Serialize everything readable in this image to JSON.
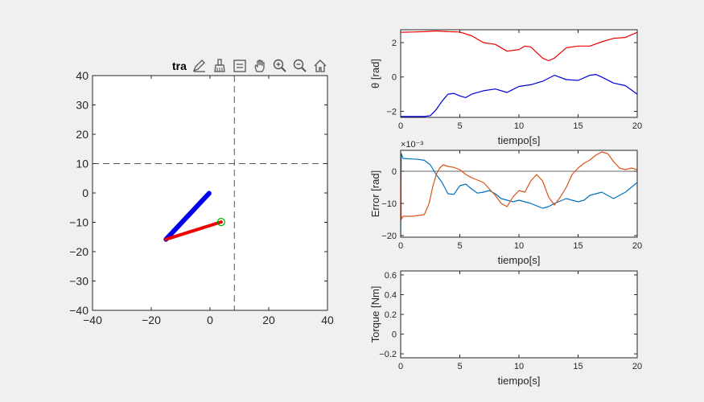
{
  "toolbar": {
    "title_fragment": "tra",
    "icons": [
      "edit-pencil-icon",
      "brush-icon",
      "data-tips-icon",
      "pan-hand-icon",
      "zoom-in-icon",
      "zoom-out-icon",
      "home-icon"
    ]
  },
  "chart_data": [
    {
      "id": "trajectory",
      "type": "line",
      "title": "tra",
      "xlim": [
        -40,
        40
      ],
      "ylim": [
        -40,
        40
      ],
      "xticks": [
        -40,
        -20,
        0,
        20,
        40
      ],
      "yticks": [
        -40,
        -30,
        -20,
        -10,
        0,
        10,
        20,
        30,
        40
      ],
      "xlabel": "",
      "ylabel": "",
      "series": [
        {
          "x": [
            -0.3,
            -15
          ],
          "y": [
            -0.1,
            -15.8
          ],
          "color": "#0000ee",
          "width": 6
        },
        {
          "x": [
            -15,
            3.8
          ],
          "y": [
            -15.8,
            -9.9
          ],
          "color": "#ee0000",
          "width": 4
        }
      ],
      "target": {
        "x": 3.8,
        "y": -9.9,
        "color": "#00b000"
      },
      "reference_lines": {
        "vertical": 8.3,
        "horizontal": 10
      }
    },
    {
      "id": "theta",
      "type": "line",
      "xlabel": "tiempo[s]",
      "ylabel": "θ  [rad]",
      "xlim": [
        0,
        20
      ],
      "ylim": [
        -2.35,
        2.75
      ],
      "xticks": [
        0,
        5,
        10,
        15,
        20
      ],
      "yticks": [
        -2,
        0,
        2
      ],
      "series": [
        {
          "color": "#ee0000",
          "x": [
            0,
            1,
            2,
            3,
            4,
            5,
            6,
            7,
            8,
            9,
            10,
            10.5,
            11,
            12,
            12.5,
            13,
            14,
            15,
            16,
            17,
            18,
            19,
            20
          ],
          "y": [
            2.6,
            2.62,
            2.64,
            2.68,
            2.64,
            2.62,
            2.4,
            2.0,
            1.9,
            1.5,
            1.6,
            1.8,
            1.75,
            1.1,
            0.95,
            1.1,
            1.7,
            1.8,
            1.8,
            2.05,
            2.25,
            2.3,
            2.6
          ]
        },
        {
          "color": "#0000dd",
          "x": [
            0,
            1,
            2,
            2.5,
            3,
            3.5,
            4,
            4.5,
            5,
            5.5,
            6,
            7,
            8,
            9,
            10,
            11,
            12,
            13,
            14,
            15,
            16,
            16.5,
            17,
            18,
            19,
            20
          ],
          "y": [
            -2.3,
            -2.3,
            -2.3,
            -2.25,
            -1.9,
            -1.4,
            -1.0,
            -0.95,
            -1.1,
            -1.2,
            -1.0,
            -0.8,
            -0.7,
            -0.9,
            -0.55,
            -0.45,
            -0.25,
            0.1,
            -0.15,
            -0.2,
            0.1,
            0.15,
            0.0,
            -0.35,
            -0.5,
            -1.0
          ]
        }
      ]
    },
    {
      "id": "error",
      "type": "line",
      "xlabel": "tiempo[s]",
      "ylabel": "Error [rad]",
      "exponent": "×10⁻³",
      "xlim": [
        0,
        20
      ],
      "ylim": [
        -20.5,
        6.5
      ],
      "xticks": [
        0,
        5,
        10,
        15,
        20
      ],
      "yticks": [
        -20,
        -10,
        0
      ],
      "zero_line": true,
      "series": [
        {
          "color": "#0072bd",
          "x": [
            0,
            0.05,
            0.2,
            0.5,
            1,
            1.5,
            2,
            2.5,
            3,
            3.5,
            4,
            4.5,
            5,
            5.5,
            6,
            6.5,
            7,
            7.5,
            8,
            8.5,
            9,
            9.5,
            10,
            11,
            12,
            12.5,
            13,
            14,
            14.5,
            15,
            15.5,
            16,
            17,
            18,
            19,
            20
          ],
          "y": [
            -20,
            5.5,
            4.0,
            3.9,
            3.8,
            3.7,
            3.4,
            2.0,
            -1.0,
            -3.5,
            -7.0,
            -7.2,
            -4.5,
            -4.0,
            -5.5,
            -6.8,
            -6.5,
            -6.0,
            -7.0,
            -8.5,
            -9.0,
            -9.5,
            -9.0,
            -10.0,
            -11.5,
            -11.0,
            -10.0,
            -8.5,
            -9.0,
            -9.5,
            -9.0,
            -7.5,
            -6.5,
            -8.5,
            -6.5,
            -3.5
          ]
        },
        {
          "color": "#d95319",
          "x": [
            0,
            0.05,
            0.2,
            1,
            2,
            2.4,
            2.7,
            3,
            3.3,
            3.6,
            4,
            4.5,
            5,
            5.5,
            6,
            7,
            7.5,
            8,
            8.5,
            9,
            9.5,
            10,
            10.5,
            11,
            11.5,
            12,
            12.5,
            13,
            13.5,
            14,
            14.5,
            15,
            15.5,
            16,
            16.5,
            17,
            17.5,
            18,
            18.5,
            19,
            19.5,
            20
          ],
          "y": [
            5.0,
            -15.0,
            -14.0,
            -14.0,
            -13.5,
            -10.0,
            -5.0,
            -1.0,
            1.0,
            2.0,
            1.5,
            1.2,
            0.5,
            -1.0,
            -2.0,
            -3.5,
            -5.5,
            -7.5,
            -10.0,
            -11.0,
            -8.0,
            -6.0,
            -6.5,
            -3.0,
            -1.0,
            -3.0,
            -8.0,
            -10.5,
            -8.0,
            -5.0,
            -1.0,
            1.0,
            2.5,
            3.5,
            5.0,
            6.0,
            5.5,
            3.0,
            1.0,
            0.5,
            1.0,
            0.5
          ]
        }
      ]
    },
    {
      "id": "torque",
      "type": "line",
      "xlabel": "tiempo[s]",
      "ylabel": "Torque [Nm]",
      "xlim": [
        0,
        20
      ],
      "ylim": [
        -0.24,
        0.64
      ],
      "xticks": [
        0,
        5,
        10,
        15,
        20
      ],
      "yticks": [
        -0.2,
        0,
        0.2,
        0.4,
        0.6
      ],
      "series": []
    }
  ]
}
